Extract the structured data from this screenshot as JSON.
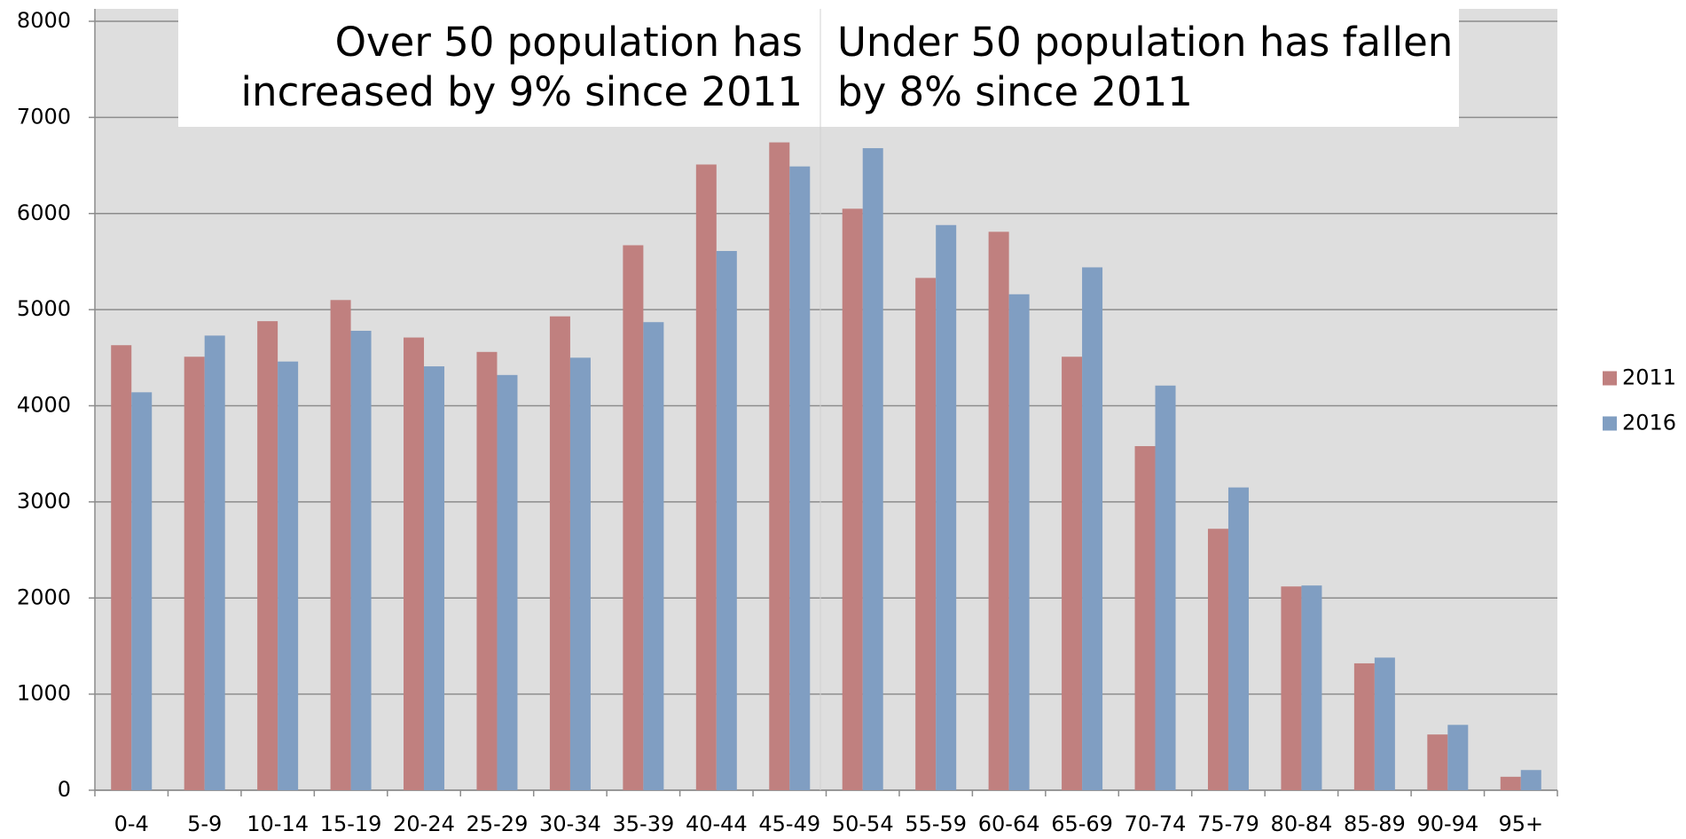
{
  "chart_data": {
    "type": "bar",
    "annotations": [
      {
        "lines": [
          "Over 50 population has",
          "increased by 9% since 2011"
        ]
      },
      {
        "lines": [
          "Under 50 population has fallen",
          "by 8% since 2011"
        ]
      }
    ],
    "categories": [
      "0-4",
      "5-9",
      "10-14",
      "15-19",
      "20-24",
      "25-29",
      "30-34",
      "35-39",
      "40-44",
      "45-49",
      "50-54",
      "55-59",
      "60-64",
      "65-69",
      "70-74",
      "75-79",
      "80-84",
      "85-89",
      "90-94",
      "95+"
    ],
    "series": [
      {
        "name": "2011",
        "color": "#c0807f",
        "values": [
          4630,
          4510,
          4880,
          5100,
          4710,
          4560,
          4930,
          5670,
          6510,
          6740,
          6050,
          5330,
          5810,
          4510,
          3580,
          2720,
          2120,
          1320,
          580,
          140
        ]
      },
      {
        "name": "2016",
        "color": "#809ec2",
        "values": [
          4140,
          4730,
          4460,
          4780,
          4410,
          4320,
          4500,
          4870,
          5610,
          6490,
          6680,
          5880,
          5160,
          5440,
          4210,
          3150,
          2130,
          1380,
          680,
          210
        ]
      }
    ],
    "ylim": [
      0,
      8000
    ],
    "yticks": [
      0,
      1000,
      2000,
      3000,
      4000,
      5000,
      6000,
      7000,
      8000
    ],
    "grid": true,
    "legend": "right"
  }
}
